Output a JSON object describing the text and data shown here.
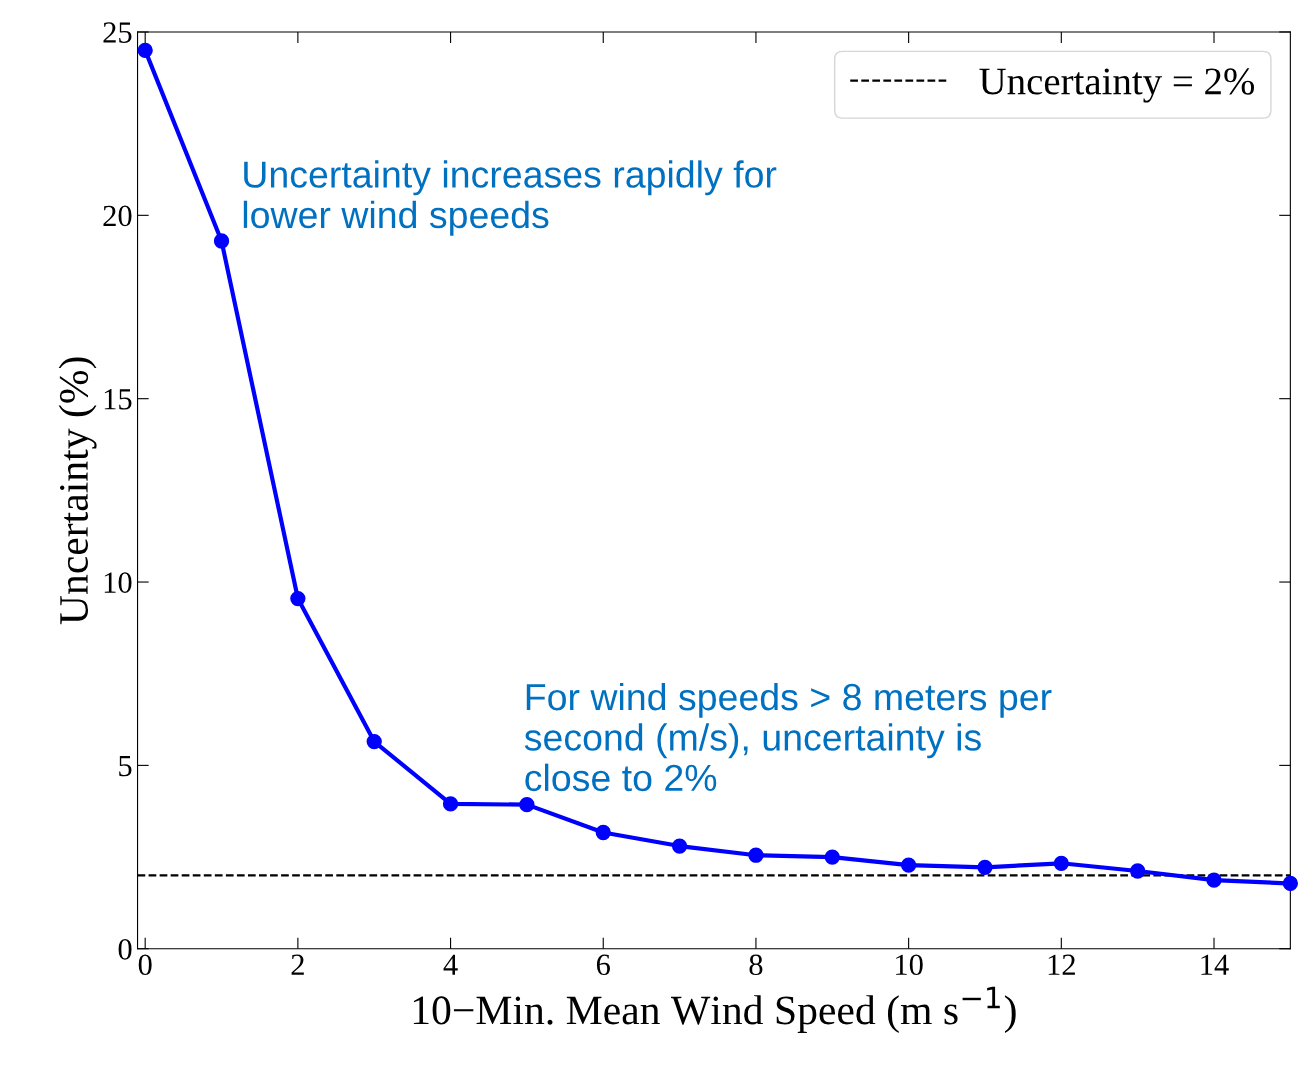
{
  "chart_data": {
    "type": "line",
    "xlabel": "10−Min. Mean Wind Speed (m s$^{−1}$)",
    "ylabel": "Uncertainty (%)",
    "x": [
      0,
      1,
      2,
      3,
      4,
      5,
      6,
      7,
      8,
      9,
      10,
      11,
      12,
      13,
      14,
      15
    ],
    "series": [
      {
        "color": "#0000ff",
        "values": [
          24.5,
          19.3,
          9.55,
          5.65,
          3.95,
          3.93,
          3.17,
          2.8,
          2.55,
          2.5,
          2.28,
          2.22,
          2.33,
          2.12,
          1.87,
          1.78
        ]
      }
    ],
    "marker": "circle",
    "line_style": "solid",
    "xlim": [
      -0.1,
      15
    ],
    "xticks": [
      0,
      2,
      4,
      6,
      8,
      10,
      12,
      14
    ],
    "ylim": [
      0,
      25
    ],
    "yticks": [
      0,
      5,
      10,
      15,
      20,
      25
    ],
    "ref_lines": [
      {
        "axis": "y",
        "value": 2,
        "label": "Uncertainty = 2%",
        "color": "#000000",
        "line_style": "dashed"
      }
    ],
    "legend": "top right",
    "grid": false,
    "annotations": [
      "Uncertainty increases rapidly for\nlower wind speeds",
      "For wind speeds > 8 meters per\nsecond (m/s), uncertainty is\nclose to 2%"
    ]
  }
}
